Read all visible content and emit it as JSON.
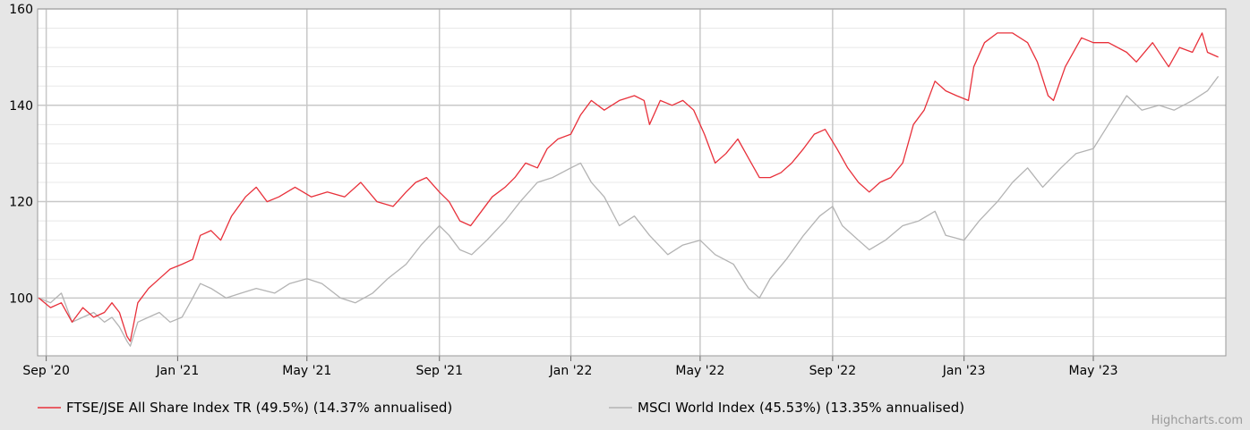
{
  "chart_data": {
    "type": "line",
    "title": "",
    "xlabel": "",
    "ylabel": "",
    "ylim": [
      88,
      160
    ],
    "y_ticks": [
      100,
      120,
      140,
      160
    ],
    "x_ticks": [
      "Sep '20",
      "Jan '21",
      "May '21",
      "Sep '21",
      "Jan '22",
      "May '22",
      "Sep '22",
      "Jan '23",
      "May '23"
    ],
    "x_tick_dates": [
      "2020-09-01",
      "2021-01-01",
      "2021-05-01",
      "2021-09-01",
      "2022-01-01",
      "2022-05-01",
      "2022-09-01",
      "2023-01-01",
      "2023-05-01"
    ],
    "xlim": [
      "2020-08-24",
      "2023-09-01"
    ],
    "grid": true,
    "legend_position": "bottom",
    "series": [
      {
        "name": "FTSE/JSE All Share Index TR (49.5%) (14.37% annualised)",
        "color": "#e8303a",
        "points": [
          [
            "2020-08-25",
            100
          ],
          [
            "2020-09-05",
            98
          ],
          [
            "2020-09-15",
            99
          ],
          [
            "2020-09-25",
            95
          ],
          [
            "2020-10-05",
            98
          ],
          [
            "2020-10-15",
            96
          ],
          [
            "2020-10-25",
            97
          ],
          [
            "2020-11-01",
            99
          ],
          [
            "2020-11-08",
            97
          ],
          [
            "2020-11-15",
            92
          ],
          [
            "2020-11-18",
            91
          ],
          [
            "2020-11-25",
            99
          ],
          [
            "2020-12-05",
            102
          ],
          [
            "2020-12-15",
            104
          ],
          [
            "2020-12-25",
            106
          ],
          [
            "2021-01-05",
            107
          ],
          [
            "2021-01-15",
            108
          ],
          [
            "2021-01-22",
            113
          ],
          [
            "2021-02-01",
            114
          ],
          [
            "2021-02-10",
            112
          ],
          [
            "2021-02-20",
            117
          ],
          [
            "2021-03-05",
            121
          ],
          [
            "2021-03-15",
            123
          ],
          [
            "2021-03-25",
            120
          ],
          [
            "2021-04-05",
            121
          ],
          [
            "2021-04-20",
            123
          ],
          [
            "2021-05-05",
            121
          ],
          [
            "2021-05-20",
            122
          ],
          [
            "2021-06-05",
            121
          ],
          [
            "2021-06-20",
            124
          ],
          [
            "2021-07-05",
            120
          ],
          [
            "2021-07-20",
            119
          ],
          [
            "2021-08-01",
            122
          ],
          [
            "2021-08-10",
            124
          ],
          [
            "2021-08-20",
            125
          ],
          [
            "2021-09-01",
            122
          ],
          [
            "2021-09-10",
            120
          ],
          [
            "2021-09-20",
            116
          ],
          [
            "2021-09-30",
            115
          ],
          [
            "2021-10-10",
            118
          ],
          [
            "2021-10-20",
            121
          ],
          [
            "2021-11-01",
            123
          ],
          [
            "2021-11-10",
            125
          ],
          [
            "2021-11-20",
            128
          ],
          [
            "2021-12-01",
            127
          ],
          [
            "2021-12-10",
            131
          ],
          [
            "2021-12-20",
            133
          ],
          [
            "2022-01-01",
            134
          ],
          [
            "2022-01-10",
            138
          ],
          [
            "2022-01-20",
            141
          ],
          [
            "2022-02-01",
            139
          ],
          [
            "2022-02-15",
            141
          ],
          [
            "2022-03-01",
            142
          ],
          [
            "2022-03-10",
            141
          ],
          [
            "2022-03-15",
            136
          ],
          [
            "2022-03-25",
            141
          ],
          [
            "2022-04-05",
            140
          ],
          [
            "2022-04-15",
            141
          ],
          [
            "2022-04-25",
            139
          ],
          [
            "2022-05-05",
            134
          ],
          [
            "2022-05-15",
            128
          ],
          [
            "2022-05-25",
            130
          ],
          [
            "2022-06-05",
            133
          ],
          [
            "2022-06-15",
            129
          ],
          [
            "2022-06-25",
            125
          ],
          [
            "2022-07-05",
            125
          ],
          [
            "2022-07-15",
            126
          ],
          [
            "2022-07-25",
            128
          ],
          [
            "2022-08-05",
            131
          ],
          [
            "2022-08-15",
            134
          ],
          [
            "2022-08-25",
            135
          ],
          [
            "2022-09-05",
            131
          ],
          [
            "2022-09-15",
            127
          ],
          [
            "2022-09-25",
            124
          ],
          [
            "2022-10-05",
            122
          ],
          [
            "2022-10-15",
            124
          ],
          [
            "2022-10-25",
            125
          ],
          [
            "2022-11-05",
            128
          ],
          [
            "2022-11-15",
            136
          ],
          [
            "2022-11-25",
            139
          ],
          [
            "2022-12-05",
            145
          ],
          [
            "2022-12-15",
            143
          ],
          [
            "2022-12-25",
            142
          ],
          [
            "2023-01-05",
            141
          ],
          [
            "2023-01-10",
            148
          ],
          [
            "2023-01-20",
            153
          ],
          [
            "2023-02-01",
            155
          ],
          [
            "2023-02-15",
            155
          ],
          [
            "2023-03-01",
            153
          ],
          [
            "2023-03-10",
            149
          ],
          [
            "2023-03-20",
            142
          ],
          [
            "2023-03-25",
            141
          ],
          [
            "2023-04-05",
            148
          ],
          [
            "2023-04-20",
            154
          ],
          [
            "2023-05-01",
            153
          ],
          [
            "2023-05-15",
            153
          ],
          [
            "2023-06-01",
            151
          ],
          [
            "2023-06-10",
            149
          ],
          [
            "2023-06-25",
            153
          ],
          [
            "2023-07-10",
            148
          ],
          [
            "2023-07-20",
            152
          ],
          [
            "2023-08-01",
            151
          ],
          [
            "2023-08-10",
            155
          ],
          [
            "2023-08-15",
            151
          ],
          [
            "2023-08-25",
            150
          ]
        ]
      },
      {
        "name": "MSCI World Index (45.53%) (13.35% annualised)",
        "color": "#b3b3b3",
        "points": [
          [
            "2020-08-25",
            100
          ],
          [
            "2020-09-05",
            99
          ],
          [
            "2020-09-15",
            101
          ],
          [
            "2020-09-25",
            95
          ],
          [
            "2020-10-05",
            96
          ],
          [
            "2020-10-15",
            97
          ],
          [
            "2020-10-25",
            95
          ],
          [
            "2020-11-01",
            96
          ],
          [
            "2020-11-08",
            94
          ],
          [
            "2020-11-15",
            91
          ],
          [
            "2020-11-18",
            90
          ],
          [
            "2020-11-25",
            95
          ],
          [
            "2020-12-05",
            96
          ],
          [
            "2020-12-15",
            97
          ],
          [
            "2020-12-25",
            95
          ],
          [
            "2021-01-05",
            96
          ],
          [
            "2021-01-15",
            100
          ],
          [
            "2021-01-22",
            103
          ],
          [
            "2021-02-01",
            102
          ],
          [
            "2021-02-15",
            100
          ],
          [
            "2021-03-01",
            101
          ],
          [
            "2021-03-15",
            102
          ],
          [
            "2021-04-01",
            101
          ],
          [
            "2021-04-15",
            103
          ],
          [
            "2021-05-01",
            104
          ],
          [
            "2021-05-15",
            103
          ],
          [
            "2021-06-01",
            100
          ],
          [
            "2021-06-15",
            99
          ],
          [
            "2021-07-01",
            101
          ],
          [
            "2021-07-15",
            104
          ],
          [
            "2021-08-01",
            107
          ],
          [
            "2021-08-15",
            111
          ],
          [
            "2021-09-01",
            115
          ],
          [
            "2021-09-10",
            113
          ],
          [
            "2021-09-20",
            110
          ],
          [
            "2021-10-01",
            109
          ],
          [
            "2021-10-15",
            112
          ],
          [
            "2021-11-01",
            116
          ],
          [
            "2021-11-15",
            120
          ],
          [
            "2021-12-01",
            124
          ],
          [
            "2021-12-15",
            125
          ],
          [
            "2022-01-01",
            127
          ],
          [
            "2022-01-10",
            128
          ],
          [
            "2022-01-20",
            124
          ],
          [
            "2022-02-01",
            121
          ],
          [
            "2022-02-15",
            115
          ],
          [
            "2022-03-01",
            117
          ],
          [
            "2022-03-15",
            113
          ],
          [
            "2022-04-01",
            109
          ],
          [
            "2022-04-15",
            111
          ],
          [
            "2022-05-01",
            112
          ],
          [
            "2022-05-15",
            109
          ],
          [
            "2022-06-01",
            107
          ],
          [
            "2022-06-15",
            102
          ],
          [
            "2022-06-25",
            100
          ],
          [
            "2022-07-05",
            104
          ],
          [
            "2022-07-20",
            108
          ],
          [
            "2022-08-05",
            113
          ],
          [
            "2022-08-20",
            117
          ],
          [
            "2022-09-01",
            119
          ],
          [
            "2022-09-10",
            115
          ],
          [
            "2022-09-25",
            112
          ],
          [
            "2022-10-05",
            110
          ],
          [
            "2022-10-20",
            112
          ],
          [
            "2022-11-05",
            115
          ],
          [
            "2022-11-20",
            116
          ],
          [
            "2022-12-05",
            118
          ],
          [
            "2022-12-15",
            113
          ],
          [
            "2023-01-01",
            112
          ],
          [
            "2023-01-15",
            116
          ],
          [
            "2023-02-01",
            120
          ],
          [
            "2023-02-15",
            124
          ],
          [
            "2023-03-01",
            127
          ],
          [
            "2023-03-15",
            123
          ],
          [
            "2023-04-01",
            127
          ],
          [
            "2023-04-15",
            130
          ],
          [
            "2023-05-01",
            131
          ],
          [
            "2023-05-15",
            136
          ],
          [
            "2023-06-01",
            142
          ],
          [
            "2023-06-15",
            139
          ],
          [
            "2023-07-01",
            140
          ],
          [
            "2023-07-15",
            139
          ],
          [
            "2023-08-01",
            141
          ],
          [
            "2023-08-15",
            143
          ],
          [
            "2023-08-25",
            146
          ]
        ]
      }
    ]
  },
  "credits": "Highcharts.com"
}
